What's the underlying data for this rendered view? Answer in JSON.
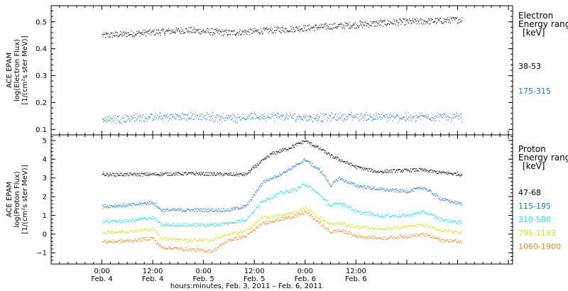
{
  "chart_data": [
    {
      "type": "scatter",
      "ylabel": [
        "ACE EPAM",
        "log(Electron Flux)",
        "[1/(cm²s ster MeV)]"
      ],
      "ylim": [
        0.08,
        0.56
      ],
      "yticks": [
        0.1,
        0.2,
        0.3,
        0.4,
        0.5
      ],
      "ytick_labels": [
        "0.1",
        "0.2",
        "0.3",
        "0.4",
        "0.5"
      ],
      "legend_title": [
        "Electron",
        "Energy ranges",
        "[keV]"
      ],
      "series": [
        {
          "name": "38-53",
          "color": "#000000",
          "x_hours": [
            0,
            10,
            20,
            30,
            40,
            50,
            60,
            70,
            80,
            85
          ],
          "y": [
            0.45,
            0.46,
            0.47,
            0.46,
            0.47,
            0.48,
            0.49,
            0.5,
            0.505,
            0.51
          ]
        },
        {
          "name": "175-315",
          "color": "#1f77d0",
          "x_hours": [
            0,
            10,
            20,
            30,
            40,
            50,
            60,
            70,
            80,
            85
          ],
          "y": [
            0.14,
            0.145,
            0.15,
            0.145,
            0.15,
            0.145,
            0.15,
            0.145,
            0.15,
            0.145
          ]
        }
      ]
    },
    {
      "type": "scatter",
      "ylabel": [
        "ACE EPAM",
        "log(Proton Flux)",
        "[1/(cm²s ster MeV)]"
      ],
      "ylim": [
        -1.6,
        5.3
      ],
      "yticks": [
        -1,
        0,
        1,
        2,
        3,
        4,
        5
      ],
      "ytick_labels": [
        "−1",
        "0",
        "1",
        "2",
        "3",
        "4",
        "5"
      ],
      "legend_title": [
        "Proton",
        "Energy ranges",
        "[keV]"
      ],
      "series": [
        {
          "name": "47-68",
          "color": "#000000",
          "x_hours": [
            0,
            10,
            20,
            30,
            34,
            36,
            40,
            44,
            48,
            52,
            54,
            56,
            60,
            65,
            70,
            75,
            80,
            85
          ],
          "y": [
            3.2,
            3.2,
            3.25,
            3.2,
            3.2,
            3.6,
            4.3,
            4.6,
            5.0,
            4.5,
            4.2,
            4.0,
            3.6,
            3.35,
            3.4,
            3.45,
            3.3,
            3.2
          ]
        },
        {
          "name": "115-195",
          "color": "#1f77d0",
          "x_hours": [
            0,
            6,
            12,
            14,
            20,
            26,
            30,
            34,
            38,
            42,
            46,
            48,
            52,
            54,
            56,
            58,
            60,
            66,
            72,
            76,
            80,
            85
          ],
          "y": [
            1.5,
            1.55,
            1.7,
            1.3,
            1.3,
            1.3,
            1.3,
            1.5,
            2.8,
            3.2,
            3.7,
            4.0,
            3.3,
            2.6,
            3.0,
            2.8,
            2.6,
            2.4,
            2.3,
            2.5,
            1.9,
            1.6
          ]
        },
        {
          "name": "310-580",
          "color": "#22e0d0",
          "x_hours": [
            0,
            6,
            12,
            14,
            20,
            26,
            30,
            34,
            38,
            42,
            46,
            48,
            52,
            54,
            56,
            58,
            60,
            66,
            72,
            76,
            80,
            85
          ],
          "y": [
            0.7,
            0.7,
            0.9,
            0.5,
            0.5,
            0.5,
            0.6,
            0.8,
            1.8,
            2.2,
            2.4,
            2.7,
            2.0,
            1.5,
            1.7,
            1.5,
            1.2,
            1.0,
            1.0,
            1.2,
            0.8,
            0.6
          ]
        },
        {
          "name": "795-1193",
          "color": "#d8e020",
          "x_hours": [
            0,
            6,
            12,
            14,
            20,
            26,
            30,
            34,
            38,
            42,
            46,
            48,
            52,
            54,
            56,
            58,
            60,
            66,
            72,
            76,
            80,
            85
          ],
          "y": [
            0.1,
            0.15,
            0.3,
            -0.2,
            -0.3,
            -0.3,
            0.0,
            0.2,
            0.9,
            1.0,
            1.2,
            1.4,
            0.8,
            0.5,
            0.6,
            0.5,
            0.4,
            0.3,
            0.4,
            0.5,
            0.2,
            0.1
          ]
        },
        {
          "name": "1060-1900",
          "color": "#f08a20",
          "x_hours": [
            0,
            6,
            12,
            14,
            20,
            26,
            30,
            34,
            38,
            42,
            46,
            48,
            52,
            54,
            56,
            58,
            60,
            66,
            72,
            76,
            80,
            85
          ],
          "y": [
            -0.4,
            -0.35,
            -0.2,
            -0.7,
            -0.8,
            -0.9,
            -0.3,
            -0.1,
            0.6,
            0.8,
            1.0,
            1.2,
            0.5,
            0.1,
            0.2,
            0.1,
            -0.1,
            -0.2,
            -0.1,
            0.0,
            -0.3,
            -0.4
          ]
        }
      ]
    }
  ],
  "x_axis": {
    "title": "hours:minutes, Feb.  3, 2011 – Feb.  6, 2011",
    "xlim_hours": [
      -12,
      97
    ],
    "ticks": [
      {
        "hours": 0,
        "time": "0:00",
        "date": "Feb. 4"
      },
      {
        "hours": 12,
        "time": "12:00",
        "date": "Feb. 4"
      },
      {
        "hours": 24,
        "time": "0:00",
        "date": "Feb. 5"
      },
      {
        "hours": 36,
        "time": "12:00",
        "date": "Feb. 5"
      },
      {
        "hours": 48,
        "time": "0:00",
        "date": "Feb. 6"
      },
      {
        "hours": 60,
        "time": "12:00",
        "date": "Feb. 6"
      }
    ]
  }
}
